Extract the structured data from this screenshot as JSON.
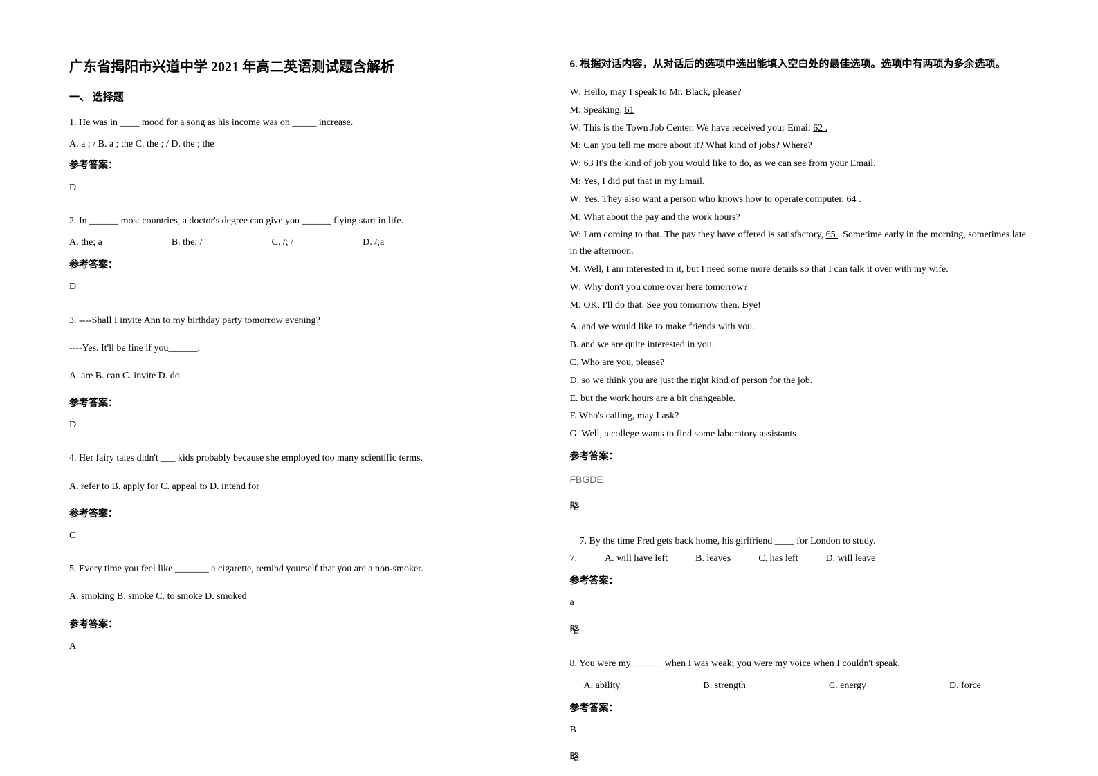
{
  "title": "广东省揭阳市兴道中学 2021 年高二英语测试题含解析",
  "section1_header": "一、 选择题",
  "q1": {
    "text": "1. He was in ____ mood for a song as his income was on _____ increase.",
    "options": "A. a ; /    B. a ; the    C. the ; /    D. the ; the",
    "answer_label": "参考答案：",
    "answer": "D"
  },
  "q2": {
    "text": "2. In ______ most countries, a doctor's degree can give you ______ flying start in life.",
    "optA": "A. the; a",
    "optB": "B. the; /",
    "optC": "C. /; /",
    "optD": "D. /;a",
    "answer_label": "参考答案：",
    "answer": "D"
  },
  "q3": {
    "line1": "3. ----Shall I invite Ann to my birthday party tomorrow evening?",
    "line2": "----Yes. It'll be fine if you______.",
    "options": "A. are     B. can     C. invite     D. do",
    "answer_label": "参考答案：",
    "answer": "D"
  },
  "q4": {
    "text": "4. Her fairy tales didn't ___ kids probably because she employed too many scientific terms.",
    "options": "A. refer to        B. apply for       C. appeal to     D. intend for",
    "answer_label": "参考答案：",
    "answer": "C"
  },
  "q5": {
    "text": "5. Every time you feel like _______ a cigarette, remind yourself that you are a non-smoker.",
    "options": "A. smoking       B. smoke       C. to smoke    D. smoked",
    "answer_label": "参考答案：",
    "answer": "A"
  },
  "q6": {
    "header": "6. 根据对话内容，从对话后的选项中选出能填入空白处的最佳选项。选项中有两项为多余选项。",
    "d1": "W: Hello, may I speak to Mr. Black, please?",
    "d2a": "M: Speaking. ",
    "d2b": "  61  ",
    "d3a": "W: This is the Town Job Center. We have received your Email ",
    "d3b": "  62  .",
    "d4": "M: Can you tell me more about it? What kind of jobs? Where?",
    "d5a": "W: ",
    "d5b": "  63  ",
    "d5c": " It's the kind of job you would like to do, as we can see from your Email.",
    "d6": "M: Yes, I did put that in my Email.",
    "d7a": "W: Yes. They also want a person who knows how to operate computer, ",
    "d7b": "  64  .",
    "d8": "M: What about the pay and the work hours?",
    "d9a": "W: I am coming to that. The pay they have offered is satisfactory, ",
    "d9b": "  65  ",
    "d9c": ". Sometime early in the              morning, sometimes late in the afternoon.",
    "d10": "M: Well, I am interested in it, but I need some more details so that I can talk it over with my wife.",
    "d11": "W: Why don't you come over here tomorrow?",
    "d12": "M: OK, I'll do that. See you tomorrow then. Bye!",
    "optA": "A. and we would like to make friends with you.",
    "optB": "B. and we are quite interested in you.",
    "optC": "C. Who are you, please?",
    "optD": "D. so we think you are just the right kind of person for the job.",
    "optE": "E. but the work hours are a bit changeable.",
    "optF": "F. Who's calling, may I ask?",
    "optG": "G. Well, a college wants to find some laboratory assistants",
    "answer_label": "参考答案：",
    "answer": "FBGDE",
    "note": "略"
  },
  "q7": {
    "num": "7.",
    "text": "7. By the time Fred gets back home, his girlfriend ____ for London to study.",
    "optA": "A. will have left",
    "optB": "B. leaves",
    "optC": "C. has left",
    "optD": "D. will leave",
    "answer_label": "参考答案：",
    "answer": "a",
    "note": "略"
  },
  "q8": {
    "text": "8. You were my ______ when I was weak; you were my voice when I couldn't speak.",
    "optA": "A. ability",
    "optB": "B. strength",
    "optC": "C. energy",
    "optD": "D. force",
    "answer_label": "参考答案：",
    "answer": "B",
    "note": "略"
  }
}
